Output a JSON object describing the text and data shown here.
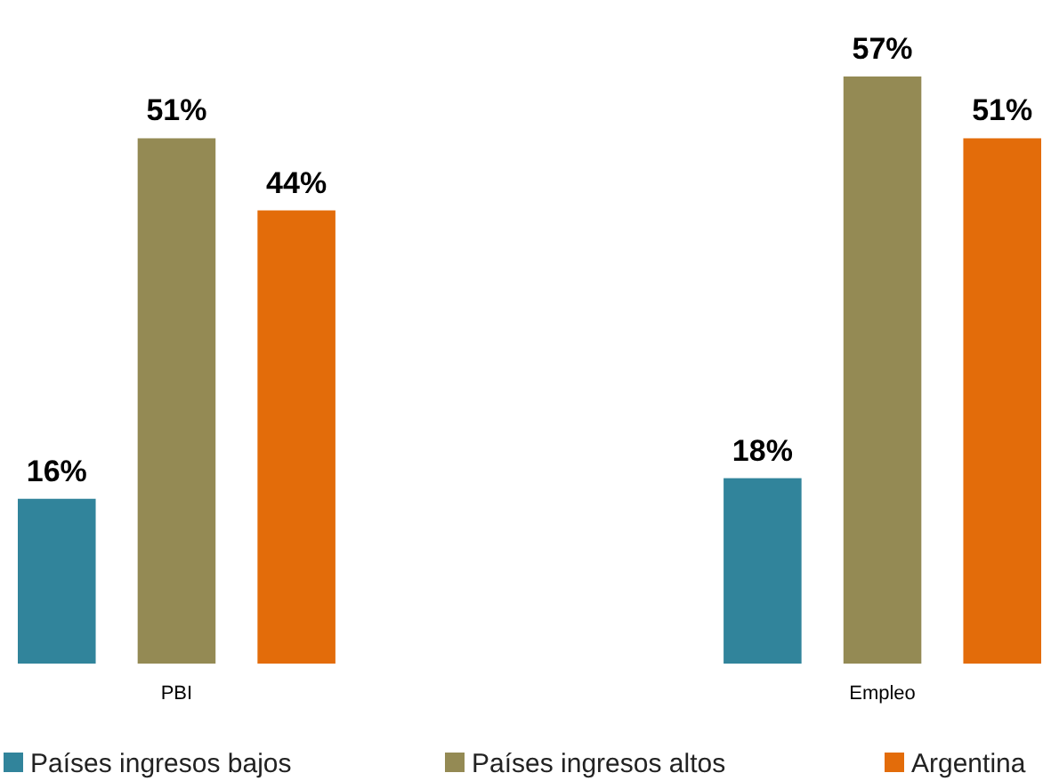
{
  "chart_data": {
    "type": "bar",
    "categories": [
      "PBI",
      "Empleo"
    ],
    "series": [
      {
        "name": "Países ingresos bajos",
        "color": "#31849b",
        "values": [
          16,
          18
        ],
        "value_labels": [
          "16%",
          "18%"
        ]
      },
      {
        "name": "Países ingresos altos",
        "color": "#948a54",
        "values": [
          51,
          57
        ],
        "value_labels": [
          "51%",
          "57%"
        ]
      },
      {
        "name": "Argentina",
        "color": "#e36c0a",
        "values": [
          44,
          51
        ],
        "value_labels": [
          "44%",
          "51%"
        ]
      }
    ],
    "legend": "bottom"
  }
}
